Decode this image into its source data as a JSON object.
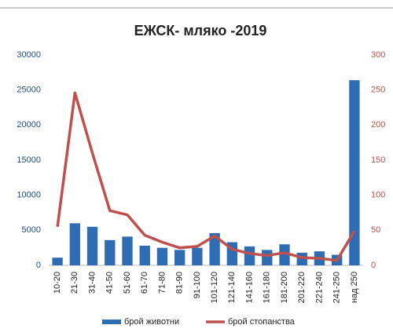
{
  "chart_data": {
    "type": "bar_line",
    "title": "ЕЖСК- мляко -2019",
    "categories": [
      "10-20",
      "21-30",
      "31-40",
      "41-50",
      "51-60",
      "61-70",
      "71-80",
      "81-90",
      "91-100",
      "101-120",
      "121-140",
      "141-160",
      "161-180",
      "181-200",
      "201-220",
      "221-240",
      "241-250",
      "над 250"
    ],
    "series": [
      {
        "name": "брой животни",
        "type": "bar",
        "color": "#2e6db4",
        "axis": "y",
        "values": [
          1100,
          6000,
          5500,
          3600,
          4100,
          2800,
          2500,
          2200,
          2500,
          4600,
          3300,
          2700,
          2200,
          3000,
          1800,
          2000,
          1500,
          26400
        ]
      },
      {
        "name": "брой стопанства",
        "type": "line",
        "color": "#c0504d",
        "axis": "y2",
        "values": [
          55,
          246,
          160,
          78,
          72,
          43,
          33,
          25,
          27,
          42,
          23,
          17,
          14,
          18,
          11,
          10,
          7,
          49
        ]
      }
    ],
    "ylim": [
      0,
      30000
    ],
    "yticks": [
      0,
      5000,
      10000,
      15000,
      20000,
      25000,
      30000
    ],
    "y2lim": [
      0,
      300
    ],
    "y2ticks": [
      0,
      50,
      100,
      150,
      200,
      250,
      300
    ],
    "legend": "bottom"
  }
}
